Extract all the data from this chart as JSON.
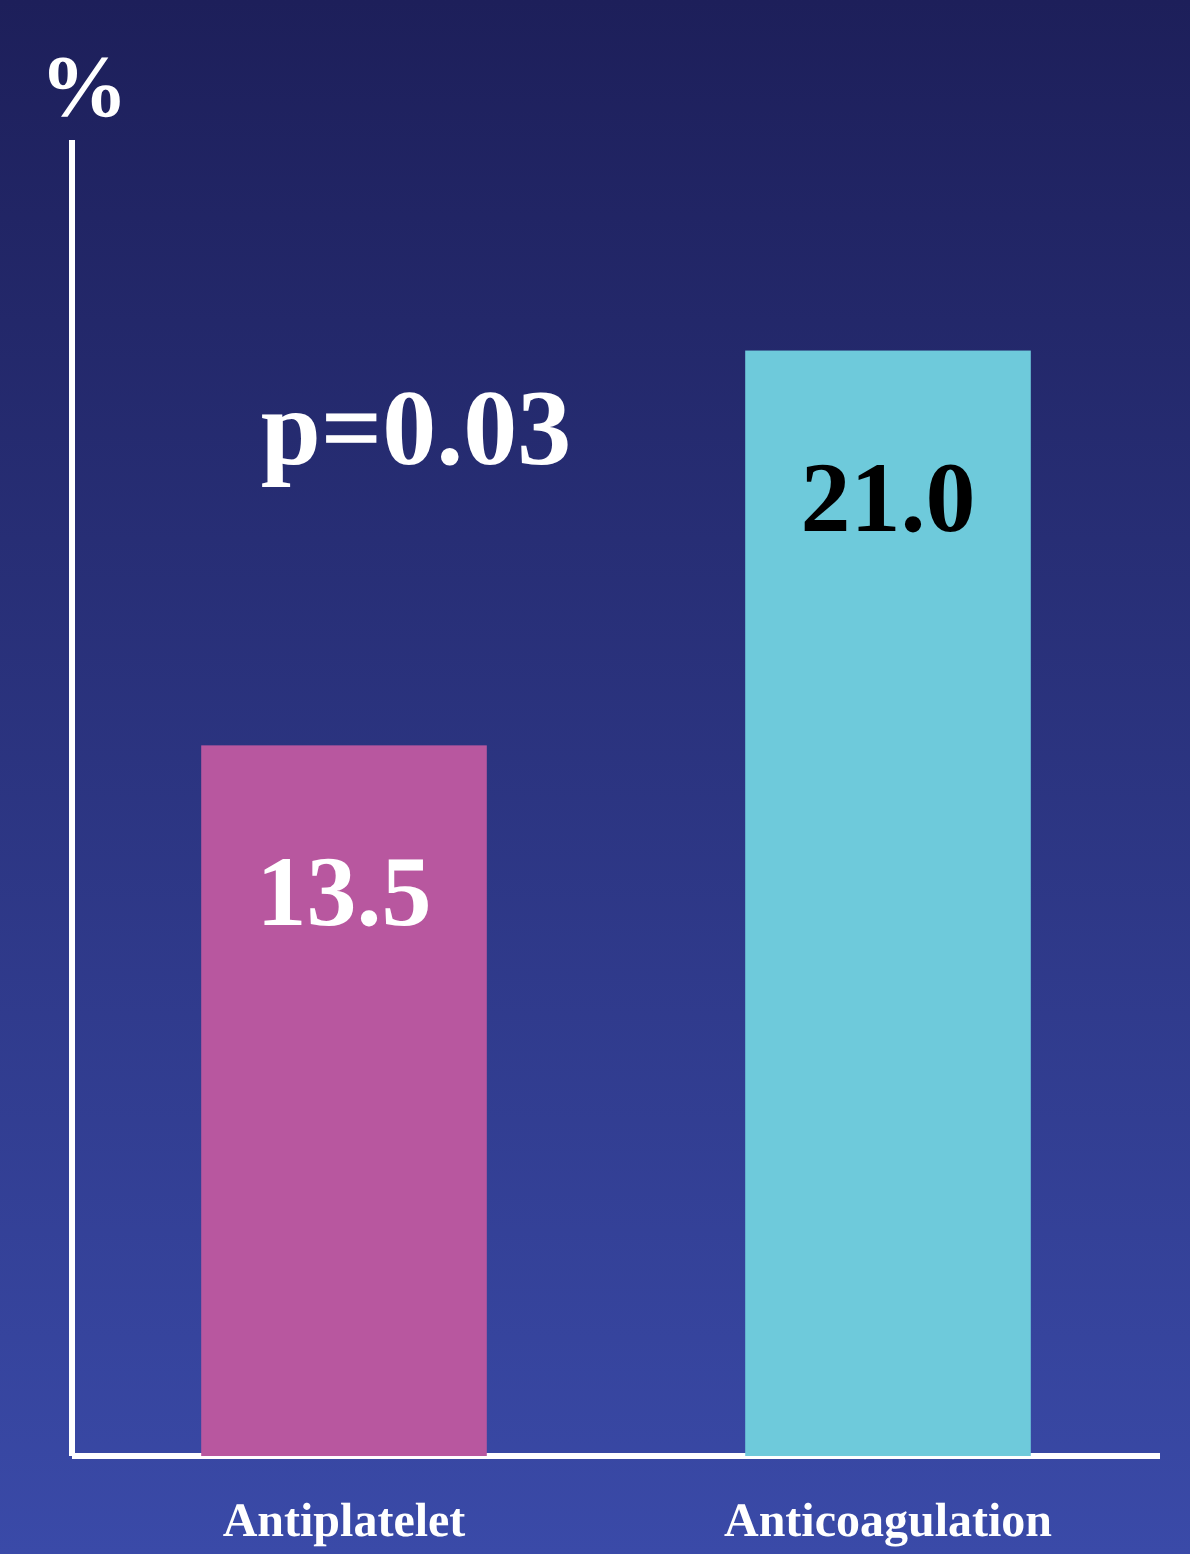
{
  "chart_data": {
    "type": "bar",
    "ylabel": "%",
    "categories": [
      "Antiplatelet",
      "Anticoagulation"
    ],
    "values": [
      13.5,
      21.0
    ],
    "colors": [
      "#b8579f",
      "#6ecadb"
    ],
    "value_labels": [
      "13.5",
      "21.0"
    ],
    "ylim": [
      0,
      25
    ],
    "annotations": [
      "p=0.03"
    ]
  }
}
